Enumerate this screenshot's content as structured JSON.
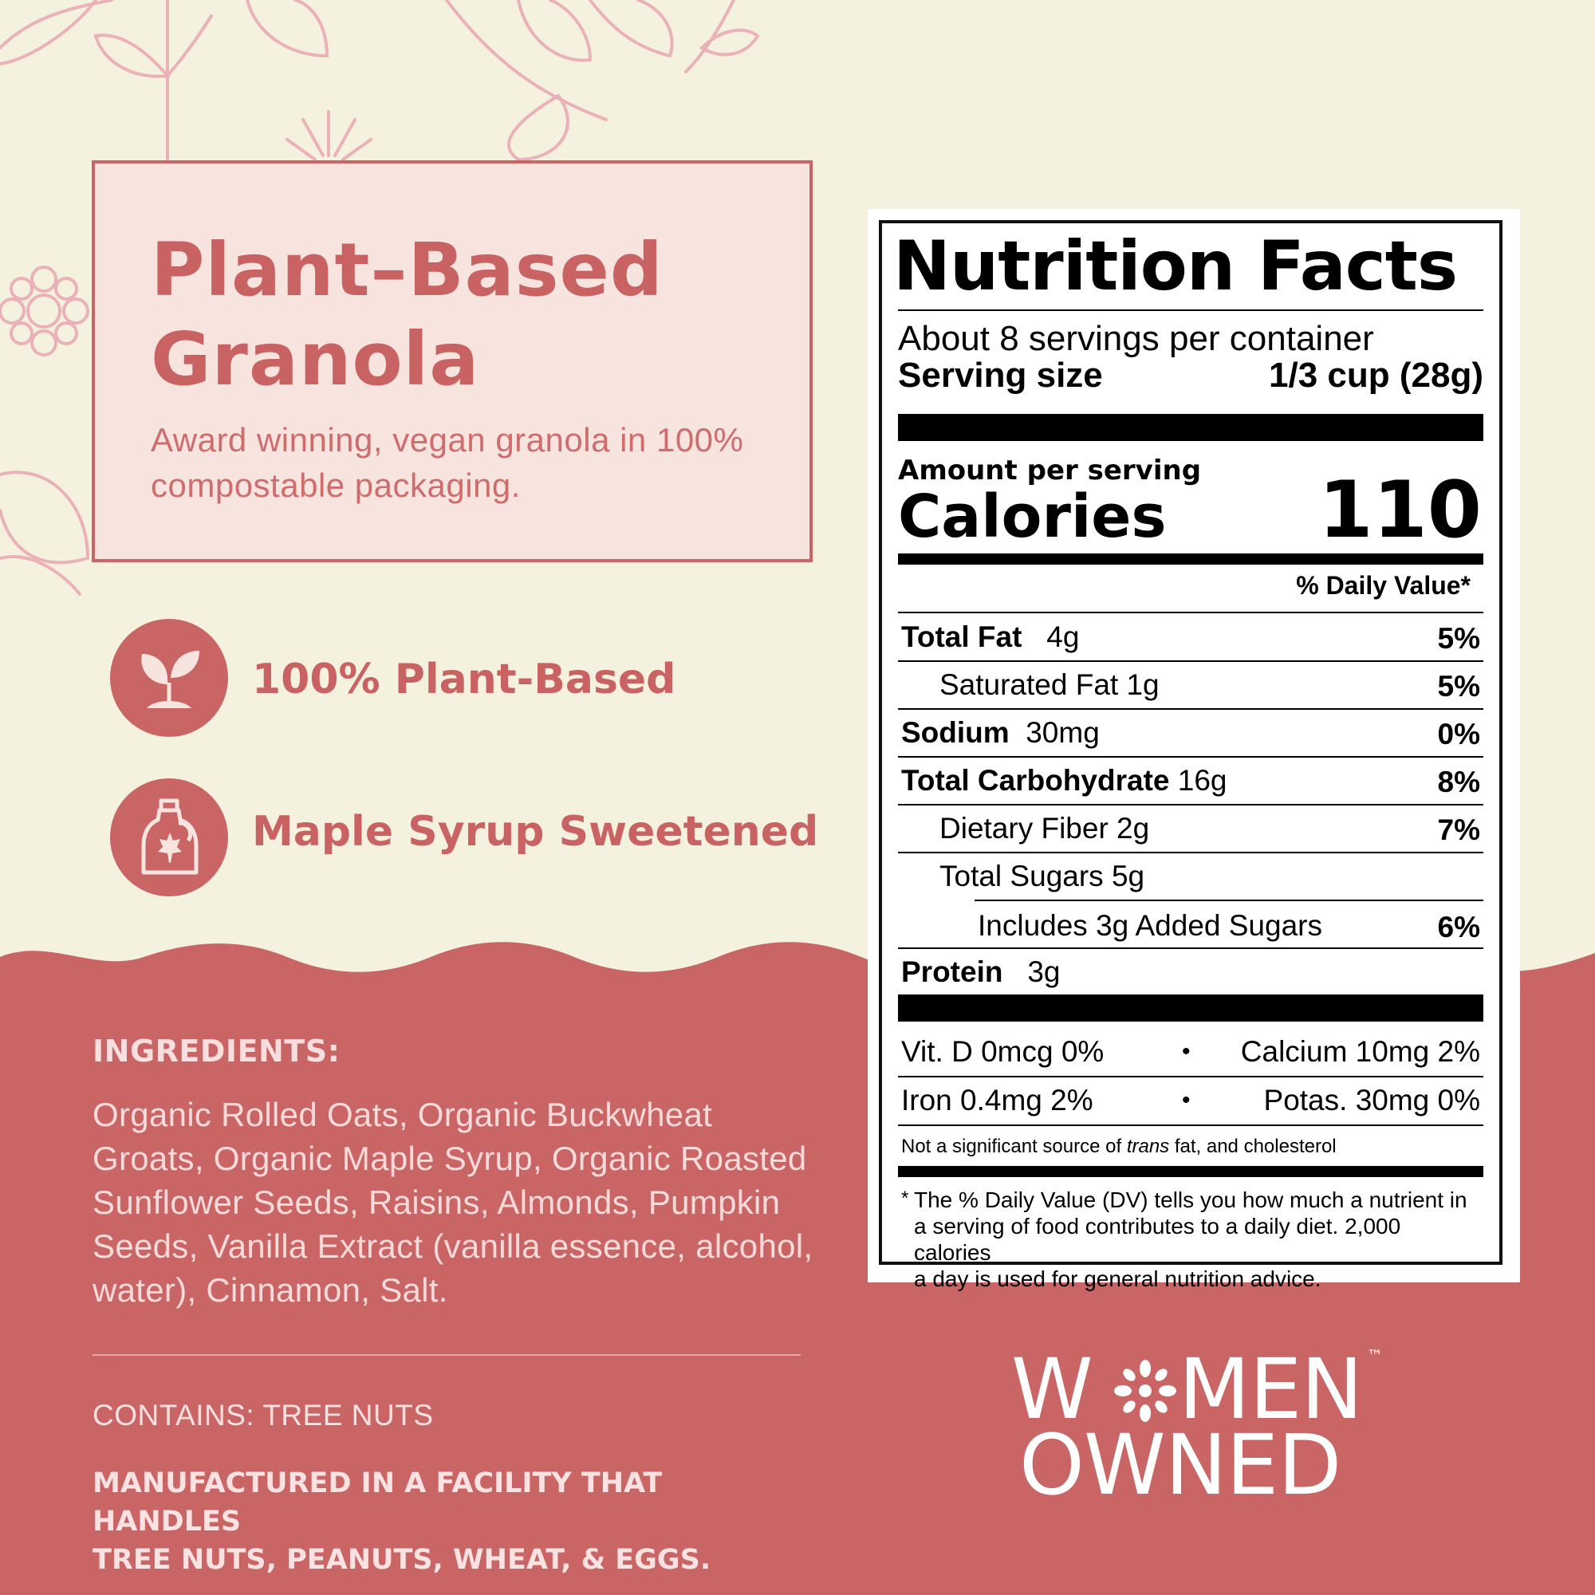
{
  "colors": {
    "cream": "#f4f1de",
    "rose": "#c96565",
    "hero_bg": "#f7e4df",
    "doodle": "#eab2b8"
  },
  "product": {
    "title_line1": "Plant–Based",
    "title_line2": "Granola",
    "tagline": "Award winning, vegan granola in 100% compostable packaging."
  },
  "features": [
    {
      "icon": "sprout-icon",
      "label": "100% Plant-Based"
    },
    {
      "icon": "maple-syrup-bottle-icon",
      "label": "Maple Syrup Sweetened"
    }
  ],
  "ingredients": {
    "heading": "INGREDIENTS:",
    "text": "Organic Rolled Oats, Organic Buckwheat Groats, Organic Maple Syrup, Organic Roasted Sunflower Seeds, Raisins, Almonds, Pumpkin Seeds, Vanilla Extract (vanilla essence, alcohol, water), Cinnamon, Salt."
  },
  "allergens": {
    "contains": "CONTAINS: TREE NUTS",
    "facility_line1": "MANUFACTURED IN A FACILITY THAT HANDLES",
    "facility_line2": "TREE NUTS, PEANUTS, WHEAT, & EGGS."
  },
  "logo": {
    "line1_start": "W",
    "line1_end": "MEN",
    "line2": "OWNED",
    "trademark": "™"
  },
  "nutrition": {
    "title": "Nutrition Facts",
    "servings": "About 8 servings per container",
    "serving_size_label": "Serving size",
    "serving_size_value": "1/3 cup (28g)",
    "amount_label": "Amount per serving",
    "calories_label": "Calories",
    "calories_value": "110",
    "dv_header": "% Daily Value*",
    "rows": [
      {
        "bold": "Total Fat",
        "amount": "4g",
        "dv": "5%"
      },
      {
        "bold": "",
        "amount": "Saturated Fat 1g",
        "dv": "5%"
      },
      {
        "bold": "Sodium",
        "amount": "30mg",
        "dv": "0%"
      },
      {
        "bold": "Total Carbohydrate",
        "amount": "16g",
        "dv": "8%"
      },
      {
        "bold": "",
        "amount": "Dietary Fiber 2g",
        "dv": "7%"
      },
      {
        "bold": "",
        "amount": "Total Sugars 5g",
        "dv": ""
      },
      {
        "bold": "",
        "amount": "Includes 3g Added Sugars",
        "dv": "6%"
      },
      {
        "bold": "Protein",
        "amount": "3g",
        "dv": ""
      }
    ],
    "vitamins": [
      {
        "left": "Vit. D 0mcg 0%",
        "right": "Calcium 10mg 2%"
      },
      {
        "left": "Iron 0.4mg 2%",
        "right": "Potas. 30mg 0%"
      }
    ],
    "bullet": "•",
    "trans_note_pre": "Not a significant source of ",
    "trans_note_em": "trans",
    "trans_note_post": " fat, and cholesterol",
    "footnote_star": "*",
    "footnote_line1": "The % Daily Value (DV) tells you how much a nutrient in",
    "footnote_line2": "a serving of food contributes to a daily diet. 2,000 calories",
    "footnote_line3": "a day is used for general nutrition advice."
  }
}
